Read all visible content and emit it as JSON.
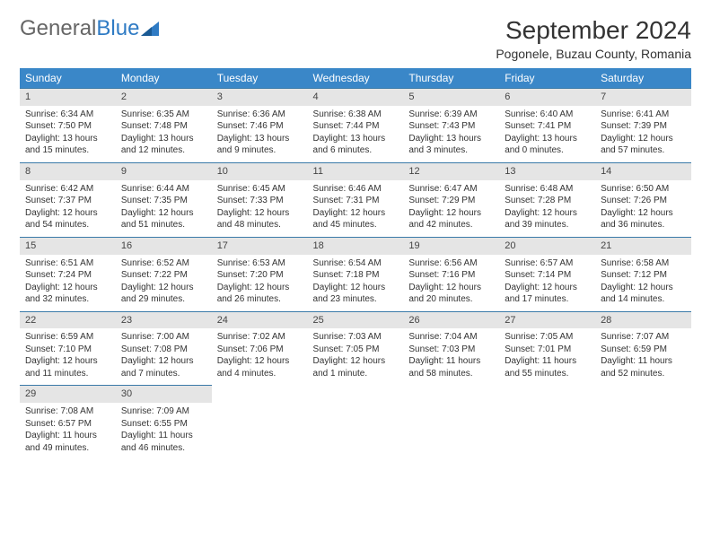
{
  "logo": {
    "text1": "General",
    "text2": "Blue"
  },
  "title": "September 2024",
  "location": "Pogonele, Buzau County, Romania",
  "colors": {
    "header_bg": "#3a87c8",
    "header_text": "#ffffff",
    "daynum_bg": "#e5e5e5",
    "daynum_border": "#3a7aa8",
    "body_text": "#333333",
    "logo_accent": "#2f7bc4"
  },
  "dayNames": [
    "Sunday",
    "Monday",
    "Tuesday",
    "Wednesday",
    "Thursday",
    "Friday",
    "Saturday"
  ],
  "weeks": [
    [
      {
        "n": "1",
        "sr": "6:34 AM",
        "ss": "7:50 PM",
        "dl": "13 hours and 15 minutes."
      },
      {
        "n": "2",
        "sr": "6:35 AM",
        "ss": "7:48 PM",
        "dl": "13 hours and 12 minutes."
      },
      {
        "n": "3",
        "sr": "6:36 AM",
        "ss": "7:46 PM",
        "dl": "13 hours and 9 minutes."
      },
      {
        "n": "4",
        "sr": "6:38 AM",
        "ss": "7:44 PM",
        "dl": "13 hours and 6 minutes."
      },
      {
        "n": "5",
        "sr": "6:39 AM",
        "ss": "7:43 PM",
        "dl": "13 hours and 3 minutes."
      },
      {
        "n": "6",
        "sr": "6:40 AM",
        "ss": "7:41 PM",
        "dl": "13 hours and 0 minutes."
      },
      {
        "n": "7",
        "sr": "6:41 AM",
        "ss": "7:39 PM",
        "dl": "12 hours and 57 minutes."
      }
    ],
    [
      {
        "n": "8",
        "sr": "6:42 AM",
        "ss": "7:37 PM",
        "dl": "12 hours and 54 minutes."
      },
      {
        "n": "9",
        "sr": "6:44 AM",
        "ss": "7:35 PM",
        "dl": "12 hours and 51 minutes."
      },
      {
        "n": "10",
        "sr": "6:45 AM",
        "ss": "7:33 PM",
        "dl": "12 hours and 48 minutes."
      },
      {
        "n": "11",
        "sr": "6:46 AM",
        "ss": "7:31 PM",
        "dl": "12 hours and 45 minutes."
      },
      {
        "n": "12",
        "sr": "6:47 AM",
        "ss": "7:29 PM",
        "dl": "12 hours and 42 minutes."
      },
      {
        "n": "13",
        "sr": "6:48 AM",
        "ss": "7:28 PM",
        "dl": "12 hours and 39 minutes."
      },
      {
        "n": "14",
        "sr": "6:50 AM",
        "ss": "7:26 PM",
        "dl": "12 hours and 36 minutes."
      }
    ],
    [
      {
        "n": "15",
        "sr": "6:51 AM",
        "ss": "7:24 PM",
        "dl": "12 hours and 32 minutes."
      },
      {
        "n": "16",
        "sr": "6:52 AM",
        "ss": "7:22 PM",
        "dl": "12 hours and 29 minutes."
      },
      {
        "n": "17",
        "sr": "6:53 AM",
        "ss": "7:20 PM",
        "dl": "12 hours and 26 minutes."
      },
      {
        "n": "18",
        "sr": "6:54 AM",
        "ss": "7:18 PM",
        "dl": "12 hours and 23 minutes."
      },
      {
        "n": "19",
        "sr": "6:56 AM",
        "ss": "7:16 PM",
        "dl": "12 hours and 20 minutes."
      },
      {
        "n": "20",
        "sr": "6:57 AM",
        "ss": "7:14 PM",
        "dl": "12 hours and 17 minutes."
      },
      {
        "n": "21",
        "sr": "6:58 AM",
        "ss": "7:12 PM",
        "dl": "12 hours and 14 minutes."
      }
    ],
    [
      {
        "n": "22",
        "sr": "6:59 AM",
        "ss": "7:10 PM",
        "dl": "12 hours and 11 minutes."
      },
      {
        "n": "23",
        "sr": "7:00 AM",
        "ss": "7:08 PM",
        "dl": "12 hours and 7 minutes."
      },
      {
        "n": "24",
        "sr": "7:02 AM",
        "ss": "7:06 PM",
        "dl": "12 hours and 4 minutes."
      },
      {
        "n": "25",
        "sr": "7:03 AM",
        "ss": "7:05 PM",
        "dl": "12 hours and 1 minute."
      },
      {
        "n": "26",
        "sr": "7:04 AM",
        "ss": "7:03 PM",
        "dl": "11 hours and 58 minutes."
      },
      {
        "n": "27",
        "sr": "7:05 AM",
        "ss": "7:01 PM",
        "dl": "11 hours and 55 minutes."
      },
      {
        "n": "28",
        "sr": "7:07 AM",
        "ss": "6:59 PM",
        "dl": "11 hours and 52 minutes."
      }
    ],
    [
      {
        "n": "29",
        "sr": "7:08 AM",
        "ss": "6:57 PM",
        "dl": "11 hours and 49 minutes."
      },
      {
        "n": "30",
        "sr": "7:09 AM",
        "ss": "6:55 PM",
        "dl": "11 hours and 46 minutes."
      },
      null,
      null,
      null,
      null,
      null
    ]
  ],
  "labels": {
    "sunrise": "Sunrise: ",
    "sunset": "Sunset: ",
    "daylight": "Daylight: "
  }
}
